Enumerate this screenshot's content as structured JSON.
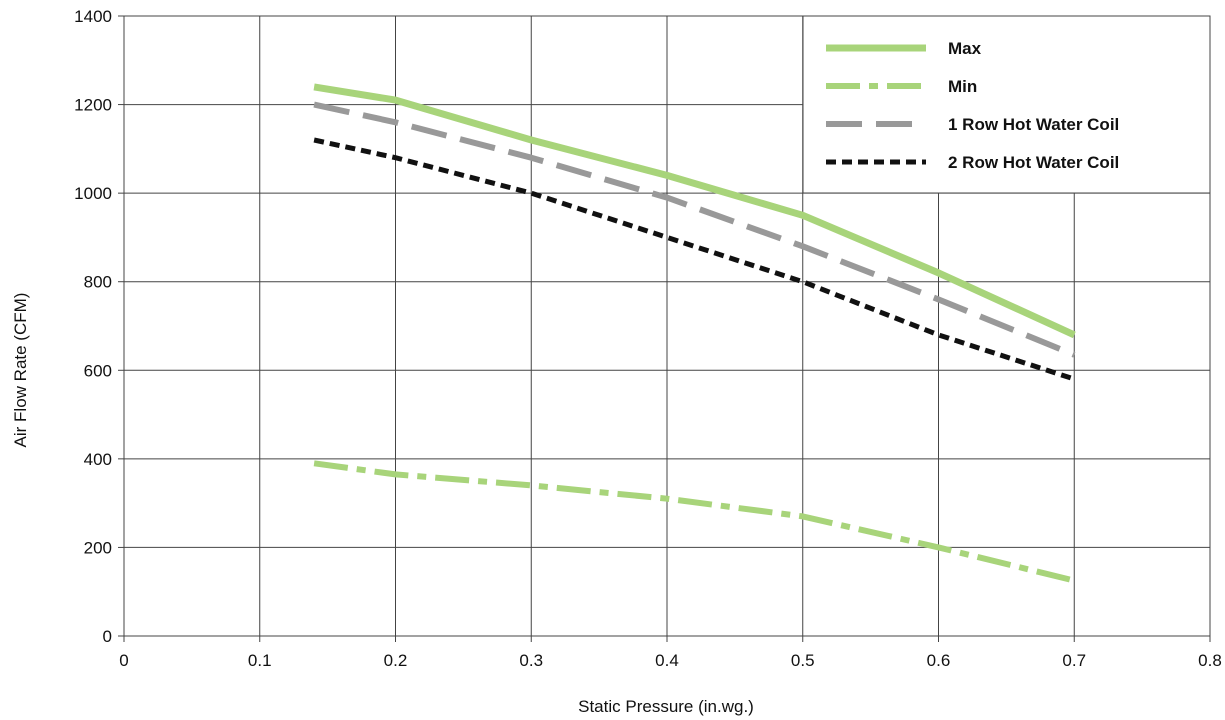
{
  "chart_data": {
    "type": "line",
    "title": "",
    "xlabel": "Static Pressure (in.wg.)",
    "ylabel": "Air Flow Rate (CFM)",
    "xlim": [
      0,
      0.8
    ],
    "ylim": [
      0,
      1400
    ],
    "x_ticks": [
      "0",
      "0.1",
      "0.2",
      "0.3",
      "0.4",
      "0.5",
      "0.6",
      "0.7",
      "0.8"
    ],
    "x_tick_values": [
      0,
      0.1,
      0.2,
      0.3,
      0.4,
      0.5,
      0.6,
      0.7,
      0.8
    ],
    "y_ticks": [
      "0",
      "200",
      "400",
      "600",
      "800",
      "1000",
      "1200",
      "1400"
    ],
    "y_tick_values": [
      0,
      200,
      400,
      600,
      800,
      1000,
      1200,
      1400
    ],
    "grid": true,
    "legend_position": "top-right",
    "series": [
      {
        "name": "Max",
        "color": "#a8d47a",
        "style": "solid",
        "x": [
          0.14,
          0.2,
          0.3,
          0.4,
          0.5,
          0.6,
          0.7
        ],
        "y": [
          1240,
          1210,
          1120,
          1040,
          950,
          820,
          680
        ]
      },
      {
        "name": "Min",
        "color": "#a8d47a",
        "style": "dash-dot",
        "x": [
          0.14,
          0.2,
          0.3,
          0.4,
          0.5,
          0.6,
          0.7
        ],
        "y": [
          390,
          365,
          340,
          310,
          270,
          200,
          125
        ]
      },
      {
        "name": "1 Row Hot Water Coil",
        "color": "#999999",
        "style": "long-dash",
        "x": [
          0.14,
          0.2,
          0.3,
          0.4,
          0.5,
          0.6,
          0.7
        ],
        "y": [
          1200,
          1160,
          1080,
          990,
          880,
          760,
          635
        ]
      },
      {
        "name": "2 Row Hot Water Coil",
        "color": "#111111",
        "style": "short-dash",
        "x": [
          0.14,
          0.2,
          0.3,
          0.4,
          0.5,
          0.6,
          0.7
        ],
        "y": [
          1120,
          1080,
          1000,
          900,
          800,
          680,
          580
        ]
      }
    ]
  }
}
